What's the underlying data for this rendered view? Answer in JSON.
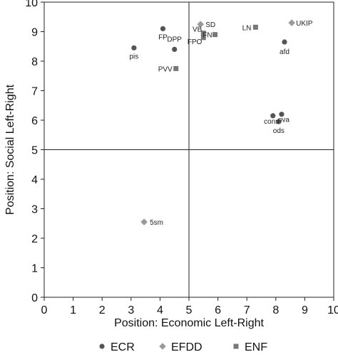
{
  "chart_data": {
    "type": "scatter",
    "xlabel": "Position: Economic Left-Right",
    "ylabel": "Position: Social Left-Right",
    "xlim": [
      0,
      10
    ],
    "ylim": [
      0,
      10
    ],
    "xticks": [
      0,
      1,
      2,
      3,
      4,
      5,
      6,
      7,
      8,
      9,
      10
    ],
    "yticks": [
      0,
      1,
      2,
      3,
      4,
      5,
      6,
      7,
      8,
      9,
      10
    ],
    "reference_lines": {
      "x": 5,
      "y": 5
    },
    "grid": false,
    "legend_position": "bottom",
    "series": [
      {
        "name": "ECR",
        "marker": "circle",
        "color": "#555555",
        "points": [
          {
            "label": "pis",
            "x": 3.1,
            "y": 8.45
          },
          {
            "label": "FP",
            "x": 4.1,
            "y": 9.1
          },
          {
            "label": "DPP",
            "x": 4.5,
            "y": 8.4
          },
          {
            "label": "afd",
            "x": 8.3,
            "y": 8.65
          },
          {
            "label": "cons",
            "x": 7.9,
            "y": 6.15
          },
          {
            "label": "nva",
            "x": 8.2,
            "y": 6.2
          },
          {
            "label": "ods",
            "x": 8.1,
            "y": 5.95
          }
        ]
      },
      {
        "name": "EFDD",
        "marker": "diamond",
        "color": "#9a9a9a",
        "points": [
          {
            "label": "SD",
            "x": 5.4,
            "y": 9.25
          },
          {
            "label": "UKIP",
            "x": 8.55,
            "y": 9.3
          },
          {
            "label": "5sm",
            "x": 3.45,
            "y": 2.55
          }
        ]
      },
      {
        "name": "ENF",
        "marker": "square",
        "color": "#777777",
        "points": [
          {
            "label": "VB",
            "x": 5.5,
            "y": 8.95
          },
          {
            "label": "FN",
            "x": 5.9,
            "y": 8.9
          },
          {
            "label": "FPO",
            "x": 5.5,
            "y": 8.8
          },
          {
            "label": "LN",
            "x": 7.3,
            "y": 9.15
          },
          {
            "label": "PVV",
            "x": 4.55,
            "y": 7.75
          }
        ]
      }
    ]
  }
}
